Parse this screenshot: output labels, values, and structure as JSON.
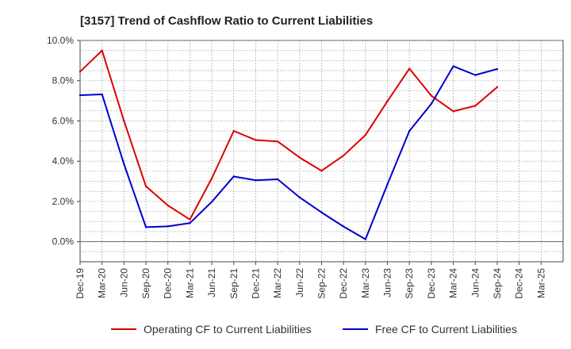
{
  "chart_data": {
    "type": "line",
    "title": "[3157]  Trend of Cashflow Ratio to Current Liabilities",
    "xlabel": "",
    "ylabel": "",
    "categories": [
      "Dec-19",
      "Mar-20",
      "Jun-20",
      "Sep-20",
      "Dec-20",
      "Mar-21",
      "Jun-21",
      "Sep-21",
      "Dec-21",
      "Mar-22",
      "Jun-22",
      "Sep-22",
      "Dec-22",
      "Mar-23",
      "Jun-23",
      "Sep-23",
      "Dec-23",
      "Mar-24",
      "Jun-24",
      "Sep-24",
      "Dec-24",
      "Mar-25"
    ],
    "ylim": [
      -1.0,
      10.0
    ],
    "yticks": [
      0,
      2,
      4,
      6,
      8,
      10
    ],
    "ytick_labels": [
      "0.0%",
      "2.0%",
      "4.0%",
      "6.0%",
      "8.0%",
      "10.0%"
    ],
    "grid": true,
    "legend_position": "bottom",
    "series": [
      {
        "name": "Operating CF to Current Liabilities",
        "color": "#dd0000",
        "values": [
          8.45,
          9.5,
          6.0,
          2.75,
          1.8,
          1.1,
          3.15,
          5.5,
          5.05,
          4.98,
          4.18,
          3.52,
          4.28,
          5.3,
          6.98,
          8.6,
          7.25,
          6.48,
          6.75,
          7.68,
          null,
          null
        ]
      },
      {
        "name": "Free CF to Current Liabilities",
        "color": "#0000cc",
        "values": [
          7.28,
          7.32,
          3.85,
          0.72,
          0.76,
          0.92,
          1.98,
          3.24,
          3.05,
          3.1,
          2.2,
          1.45,
          0.75,
          0.12,
          2.85,
          5.5,
          6.85,
          8.72,
          8.28,
          8.58,
          null,
          null
        ]
      }
    ]
  }
}
